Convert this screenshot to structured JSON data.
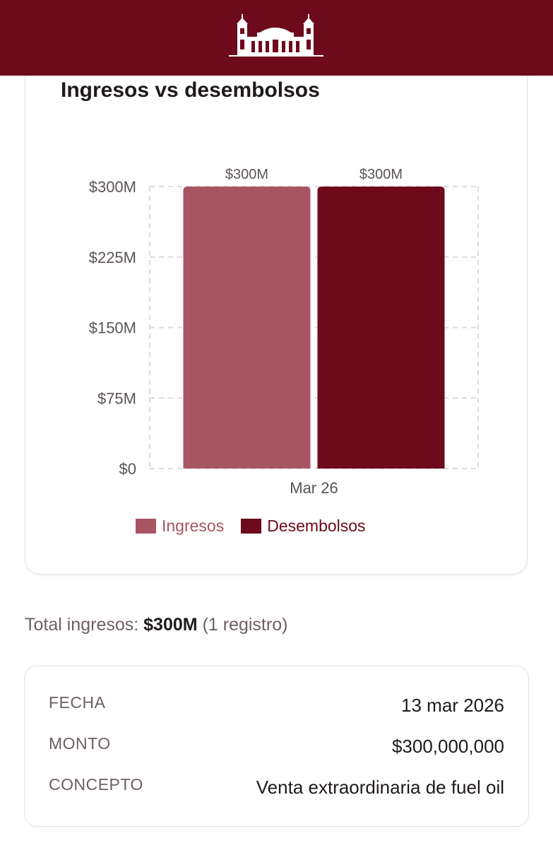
{
  "chart_card": {
    "title": "Ingresos vs desembolsos"
  },
  "chart_data": {
    "type": "bar",
    "title": "Ingresos vs desembolsos",
    "categories": [
      "Mar 26"
    ],
    "series": [
      {
        "name": "Ingresos",
        "values": [
          300000000
        ],
        "label": "$300M",
        "color": "#a85563"
      },
      {
        "name": "Desembolsos",
        "values": [
          300000000
        ],
        "label": "$300M",
        "color": "#6d0a1b"
      }
    ],
    "ylim": [
      0,
      300000000
    ],
    "yticks": [
      {
        "value": 0,
        "label": "$0"
      },
      {
        "value": 75000000,
        "label": "$75M"
      },
      {
        "value": 150000000,
        "label": "$150M"
      },
      {
        "value": 225000000,
        "label": "$225M"
      },
      {
        "value": 300000000,
        "label": "$300M"
      }
    ],
    "grid": true,
    "legend": "bottom",
    "xlabel": "",
    "ylabel": ""
  },
  "summary": {
    "prefix": "Total ingresos:",
    "amount": "$300M",
    "count": "(1 registro)"
  },
  "detail": {
    "rows": [
      {
        "label": "FECHA",
        "value": "13 mar 2026"
      },
      {
        "label": "MONTO",
        "value": "$300,000,000"
      },
      {
        "label": "CONCEPTO",
        "value": "Venta extraordinaria de fuel oil"
      }
    ]
  },
  "colors": {
    "header": "#6d0a1b",
    "ingresos": "#a85563",
    "desembolsos": "#6d0a1b"
  }
}
